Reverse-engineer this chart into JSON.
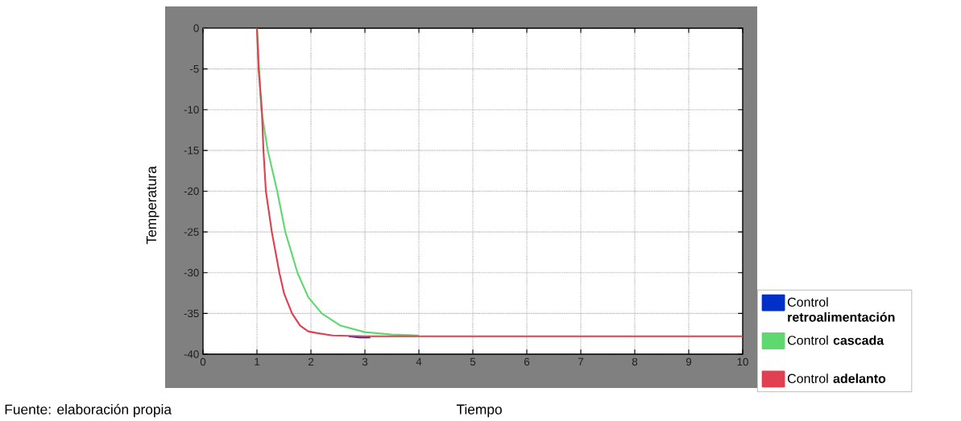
{
  "chart_data": {
    "type": "line",
    "xlabel": "Tiempo",
    "ylabel": "Temperatura",
    "annotations": [
      "Fuente: elaboración propia"
    ],
    "xlim": [
      0,
      10
    ],
    "ylim": [
      -40,
      0
    ],
    "xticks": [
      0,
      1,
      2,
      3,
      4,
      5,
      6,
      7,
      8,
      9,
      10
    ],
    "yticks": [
      -40,
      -35,
      -30,
      -25,
      -20,
      -15,
      -10,
      -5,
      0
    ],
    "grid": true,
    "legend": "bottom right",
    "line_style": "solid",
    "marker": "none",
    "series": [
      {
        "name": "Control **retroalimentación**",
        "color": "#0030c8",
        "x": [
          2.7,
          2.9,
          3.1
        ],
        "values": [
          -37.8,
          -37.95,
          -37.95
        ]
      },
      {
        "name": "Control **cascada**",
        "color": "#60d870",
        "x": [
          0,
          1,
          1.04,
          1.08,
          1.2,
          1.375,
          1.525,
          1.75,
          1.95,
          2.2,
          2.55,
          3,
          3.5,
          4
        ],
        "values": [
          0,
          0,
          -5,
          -10,
          -15,
          -20,
          -25,
          -30,
          -33,
          -35,
          -36.5,
          -37.3,
          -37.6,
          -37.7
        ]
      },
      {
        "name": "Control **adelanto**",
        "color": "#e04050",
        "x": [
          0,
          1,
          1.03,
          1.09,
          1.12,
          1.165,
          1.275,
          1.415,
          1.5,
          1.65,
          1.8,
          1.95,
          2.1,
          2.4,
          3,
          10
        ],
        "values": [
          0,
          0,
          -5,
          -10,
          -15,
          -20,
          -25,
          -30,
          -32.5,
          -35,
          -36.5,
          -37.2,
          -37.4,
          -37.7,
          -37.8,
          -37.8
        ]
      }
    ]
  }
}
